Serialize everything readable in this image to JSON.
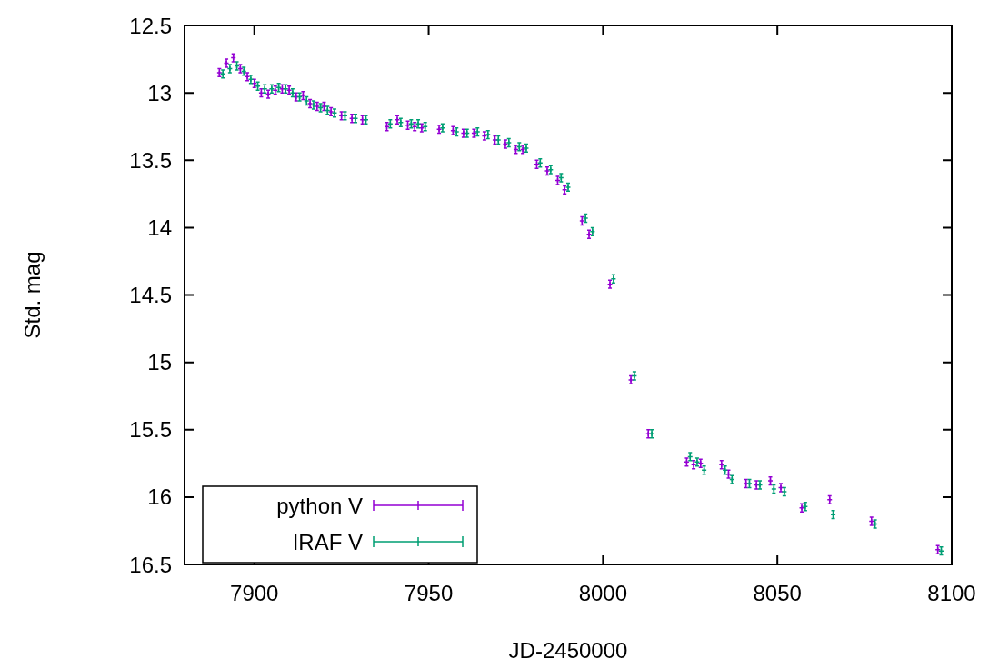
{
  "chart_data": {
    "type": "scatter",
    "xlabel": "JD-2450000",
    "ylabel": "Std. mag",
    "xlim": [
      7880,
      8100
    ],
    "ylim": [
      16.5,
      12.5
    ],
    "xticks": [
      7900,
      7950,
      8000,
      8050,
      8100
    ],
    "yticks": [
      12.5,
      13,
      13.5,
      14,
      14.5,
      15,
      15.5,
      16,
      16.5
    ],
    "grid": false,
    "legend": "bottom left",
    "marker": "cross",
    "series": [
      {
        "name": "python V",
        "color": "#9400d3",
        "x": [
          7890,
          7892,
          7894,
          7896,
          7898,
          7900,
          7902,
          7904,
          7906,
          7908,
          7910,
          7912,
          7914,
          7916,
          7918,
          7920,
          7922,
          7925,
          7928,
          7931,
          7938,
          7941,
          7944,
          7946,
          7948,
          7953,
          7957,
          7960,
          7963,
          7966,
          7969,
          7972,
          7975,
          7977,
          7981,
          7984,
          7987,
          7989,
          7994,
          7996,
          8002,
          8008,
          8013,
          8024,
          8026,
          8028,
          8034,
          8036,
          8041,
          8044,
          8048,
          8051,
          8057,
          8065,
          8077,
          8096
        ],
        "values": [
          12.85,
          12.78,
          12.74,
          12.82,
          12.88,
          12.93,
          13.0,
          13.01,
          12.98,
          12.97,
          12.98,
          13.03,
          13.02,
          13.08,
          13.1,
          13.1,
          13.14,
          13.17,
          13.19,
          13.2,
          13.25,
          13.2,
          13.24,
          13.25,
          13.26,
          13.27,
          13.28,
          13.3,
          13.3,
          13.32,
          13.35,
          13.38,
          13.42,
          13.42,
          13.53,
          13.58,
          13.65,
          13.72,
          13.95,
          14.05,
          14.42,
          15.13,
          15.53,
          15.74,
          15.76,
          15.75,
          15.76,
          15.83,
          15.9,
          15.91,
          15.88,
          15.93,
          16.08,
          16.02,
          16.18,
          16.39
        ],
        "errors": [
          0.03,
          0.03,
          0.03,
          0.03,
          0.03,
          0.03,
          0.03,
          0.03,
          0.03,
          0.03,
          0.03,
          0.03,
          0.03,
          0.03,
          0.03,
          0.03,
          0.03,
          0.03,
          0.03,
          0.03,
          0.03,
          0.03,
          0.03,
          0.03,
          0.03,
          0.03,
          0.03,
          0.03,
          0.03,
          0.03,
          0.03,
          0.03,
          0.03,
          0.03,
          0.03,
          0.03,
          0.03,
          0.03,
          0.03,
          0.03,
          0.03,
          0.03,
          0.03,
          0.03,
          0.03,
          0.03,
          0.03,
          0.03,
          0.03,
          0.03,
          0.03,
          0.03,
          0.03,
          0.03,
          0.03,
          0.03
        ]
      },
      {
        "name": "IRAF V",
        "color": "#009e73",
        "x": [
          7891,
          7893,
          7895,
          7897,
          7899,
          7901,
          7903,
          7905,
          7907,
          7909,
          7911,
          7913,
          7915,
          7917,
          7919,
          7921,
          7923,
          7926,
          7929,
          7932,
          7939,
          7942,
          7945,
          7947,
          7949,
          7954,
          7958,
          7961,
          7964,
          7967,
          7970,
          7973,
          7976,
          7978,
          7982,
          7985,
          7988,
          7990,
          7995,
          7997,
          8003,
          8009,
          8014,
          8025,
          8027,
          8029,
          8035,
          8037,
          8042,
          8045,
          8049,
          8052,
          8058,
          8066,
          8078,
          8097
        ],
        "values": [
          12.86,
          12.82,
          12.8,
          12.84,
          12.9,
          12.95,
          12.97,
          12.97,
          12.96,
          12.97,
          13.0,
          13.03,
          13.06,
          13.09,
          13.11,
          13.13,
          13.15,
          13.17,
          13.19,
          13.2,
          13.23,
          13.22,
          13.23,
          13.23,
          13.25,
          13.26,
          13.29,
          13.3,
          13.29,
          13.31,
          13.35,
          13.37,
          13.4,
          13.41,
          13.52,
          13.57,
          13.63,
          13.7,
          13.93,
          14.03,
          14.38,
          15.1,
          15.53,
          15.7,
          15.74,
          15.8,
          15.8,
          15.87,
          15.9,
          15.91,
          15.94,
          15.96,
          16.07,
          16.13,
          16.2,
          16.4
        ],
        "errors": [
          0.03,
          0.03,
          0.03,
          0.03,
          0.03,
          0.03,
          0.03,
          0.03,
          0.03,
          0.03,
          0.03,
          0.03,
          0.03,
          0.03,
          0.03,
          0.03,
          0.03,
          0.03,
          0.03,
          0.03,
          0.03,
          0.03,
          0.03,
          0.03,
          0.03,
          0.03,
          0.03,
          0.03,
          0.03,
          0.03,
          0.03,
          0.03,
          0.03,
          0.03,
          0.03,
          0.03,
          0.03,
          0.03,
          0.03,
          0.03,
          0.03,
          0.03,
          0.03,
          0.03,
          0.03,
          0.03,
          0.03,
          0.03,
          0.03,
          0.03,
          0.03,
          0.03,
          0.03,
          0.03,
          0.03,
          0.03
        ]
      }
    ]
  }
}
